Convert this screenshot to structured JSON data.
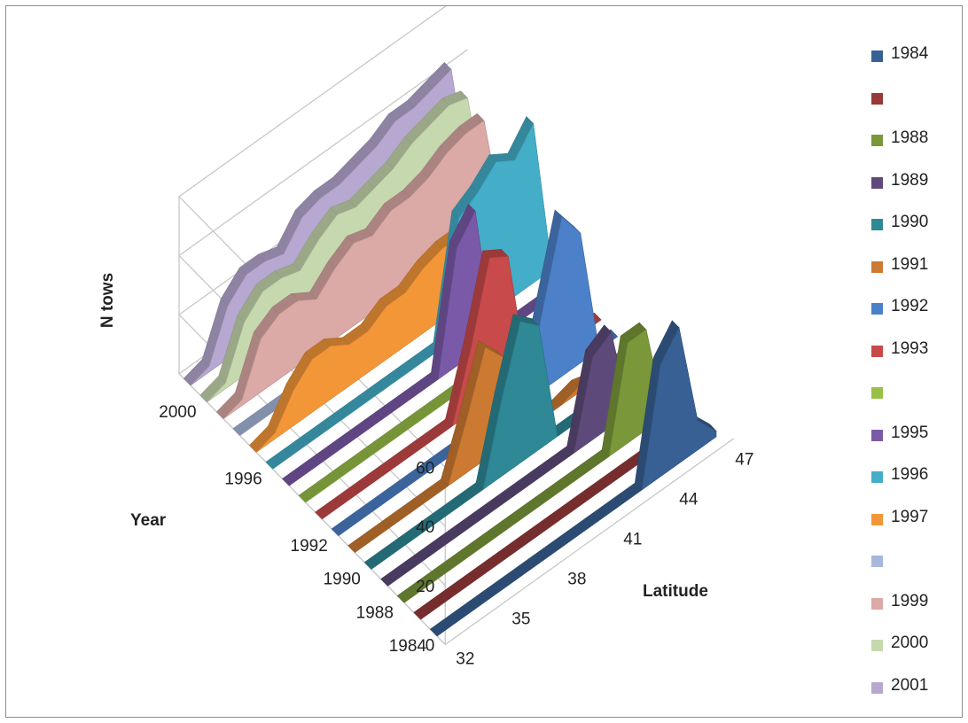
{
  "chart_data": {
    "type": "area",
    "title": "",
    "ylabel": "N tows",
    "xlabel": "Latitude",
    "zlabel": "Year",
    "ylim": [
      0,
      60
    ],
    "y_ticks": [
      "0",
      "20",
      "40",
      "60"
    ],
    "x_ticks": [
      "32",
      "35",
      "38",
      "41",
      "44",
      "47"
    ],
    "z_ticks": [
      "1984",
      "1988",
      "1990",
      "1992",
      "1996",
      "2000"
    ],
    "x": [
      32,
      33,
      34,
      35,
      36,
      37,
      38,
      39,
      40,
      41,
      42,
      43,
      44,
      45,
      46,
      47
    ],
    "series": [
      {
        "name": "1984",
        "color": "#386094",
        "values": [
          0,
          0,
          0,
          0,
          0,
          0,
          0,
          0,
          0,
          0,
          0,
          0,
          38,
          46,
          10,
          2
        ]
      },
      {
        "name": "",
        "color": "#963a3a",
        "values": [
          0,
          0,
          0,
          0,
          0,
          0,
          0,
          0,
          0,
          0,
          0,
          0,
          0,
          0,
          0,
          0
        ]
      },
      {
        "name": "1988",
        "color": "#7a973a",
        "values": [
          0,
          0,
          0,
          0,
          0,
          0,
          0,
          0,
          0,
          0,
          0,
          0,
          34,
          34,
          0,
          0
        ]
      },
      {
        "name": "1989",
        "color": "#5e4a7a",
        "values": [
          0,
          0,
          0,
          0,
          0,
          0,
          0,
          0,
          0,
          0,
          0,
          28,
          32,
          0,
          0,
          0
        ]
      },
      {
        "name": "1990",
        "color": "#2e8896",
        "values": [
          0,
          0,
          0,
          0,
          0,
          0,
          0,
          26,
          48,
          42,
          0,
          0,
          0,
          0,
          0,
          0
        ]
      },
      {
        "name": "1991",
        "color": "#cc7a32",
        "values": [
          0,
          0,
          0,
          0,
          0,
          0,
          18,
          38,
          30,
          0,
          0,
          0,
          2,
          0,
          0,
          0
        ]
      },
      {
        "name": "1992",
        "color": "#4c80c8",
        "values": [
          0,
          0,
          0,
          0,
          0,
          0,
          0,
          0,
          0,
          0,
          0,
          28,
          54,
          44,
          0,
          0
        ]
      },
      {
        "name": "1993",
        "color": "#c84a4a",
        "values": [
          0,
          0,
          0,
          0,
          0,
          0,
          0,
          0,
          22,
          48,
          44,
          0,
          0,
          0,
          0,
          0
        ]
      },
      {
        "name": "",
        "color": "#98bf48",
        "values": [
          0,
          0,
          0,
          0,
          0,
          0,
          0,
          0,
          0,
          0,
          0,
          0,
          0,
          0,
          0,
          0
        ]
      },
      {
        "name": "1995",
        "color": "#7a5aa8",
        "values": [
          0,
          0,
          0,
          0,
          0,
          0,
          0,
          0,
          0,
          40,
          48,
          0,
          0,
          0,
          0,
          0
        ]
      },
      {
        "name": "1996",
        "color": "#44aec8",
        "values": [
          0,
          0,
          0,
          0,
          0,
          0,
          0,
          0,
          0,
          0,
          40,
          44,
          50,
          46,
          54,
          0
        ]
      },
      {
        "name": "1997",
        "color": "#f39638",
        "values": [
          0,
          2,
          12,
          18,
          18,
          14,
          14,
          18,
          18,
          22,
          24,
          24,
          16,
          0,
          0,
          0
        ]
      },
      {
        "name": "",
        "color": "#a8b8dc",
        "values": [
          0,
          0,
          0,
          0,
          0,
          0,
          0,
          0,
          0,
          0,
          0,
          0,
          0,
          0,
          0,
          0
        ]
      },
      {
        "name": "1999",
        "color": "#dba9a6",
        "values": [
          0,
          2,
          18,
          22,
          22,
          18,
          24,
          28,
          26,
          30,
          30,
          32,
          36,
          38,
          38,
          0
        ]
      },
      {
        "name": "2000",
        "color": "#c6d8ae",
        "values": [
          0,
          2,
          18,
          24,
          24,
          22,
          28,
          32,
          30,
          32,
          34,
          38,
          40,
          42,
          40,
          0
        ]
      },
      {
        "name": "2001",
        "color": "#b6a8d0",
        "values": [
          0,
          2,
          18,
          24,
          24,
          22,
          30,
          32,
          32,
          34,
          36,
          40,
          40,
          42,
          44,
          0
        ]
      }
    ],
    "legend": {
      "position": "right"
    },
    "grid": true
  }
}
